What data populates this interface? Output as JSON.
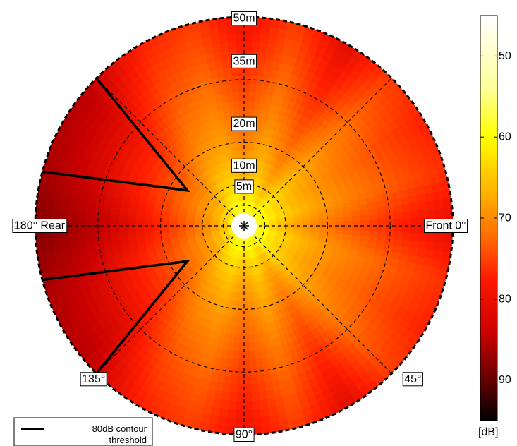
{
  "chart_data": {
    "type": "heatmap",
    "subtype": "polar-contour",
    "radial_rings": [
      5,
      10,
      20,
      35,
      50
    ],
    "radial_labels": [
      "5m",
      "10m",
      "20m",
      "35m",
      "50m"
    ],
    "angle_labels": [
      {
        "angle": 0,
        "text": "Front 0°"
      },
      {
        "angle": 45,
        "text": "45°"
      },
      {
        "angle": 90,
        "text": "90°"
      },
      {
        "angle": 135,
        "text": "135°"
      },
      {
        "angle": 180,
        "text": "180° Rear"
      }
    ],
    "center_marker": "asterisk",
    "colorbar": {
      "unit_label": "[dB]",
      "range": [
        45,
        95
      ],
      "ticks": [
        50,
        60,
        70,
        80,
        90
      ],
      "colormap": "hot-reversed"
    },
    "noise_level_dB_at_50m_by_angle": [
      {
        "angle": -180,
        "value": 86
      },
      {
        "angle": -160,
        "value": 83
      },
      {
        "angle": -140,
        "value": 82
      },
      {
        "angle": -120,
        "value": 76
      },
      {
        "angle": -105,
        "value": 74
      },
      {
        "angle": -90,
        "value": 78
      },
      {
        "angle": -75,
        "value": 74
      },
      {
        "angle": -60,
        "value": 79
      },
      {
        "angle": -45,
        "value": 74
      },
      {
        "angle": -30,
        "value": 76
      },
      {
        "angle": -15,
        "value": 75
      },
      {
        "angle": 0,
        "value": 79
      },
      {
        "angle": 15,
        "value": 75
      },
      {
        "angle": 30,
        "value": 76
      },
      {
        "angle": 45,
        "value": 74
      },
      {
        "angle": 60,
        "value": 79
      },
      {
        "angle": 75,
        "value": 74
      },
      {
        "angle": 90,
        "value": 78
      },
      {
        "angle": 105,
        "value": 74
      },
      {
        "angle": 120,
        "value": 76
      },
      {
        "angle": 140,
        "value": 82
      },
      {
        "angle": 160,
        "value": 83
      },
      {
        "angle": 180,
        "value": 86
      }
    ],
    "contour_80dB": {
      "legend_label": "80dB contour threshold",
      "paths": [
        [
          {
            "angle": -135,
            "radius": 50
          },
          {
            "angle": -148,
            "radius": 16
          },
          {
            "angle": -165,
            "radius": 50
          }
        ],
        [
          {
            "angle": 135,
            "radius": 50
          },
          {
            "angle": 148,
            "radius": 16
          },
          {
            "angle": 165,
            "radius": 50
          }
        ]
      ]
    }
  },
  "legend": {
    "line1": "80dB contour",
    "line2": "threshold"
  }
}
